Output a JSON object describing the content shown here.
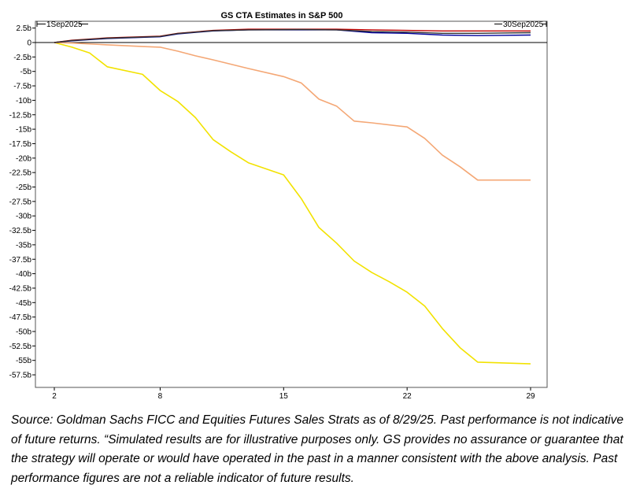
{
  "chart_data": {
    "type": "line",
    "title": "GS CTA Estimates in S&P 500",
    "start_label": "1Sep2025",
    "end_label": "30Sep2025",
    "xlim": [
      1,
      29
    ],
    "ylim": [
      -58.5,
      3
    ],
    "x_ticks": [
      2,
      8,
      15,
      22,
      29
    ],
    "y_ticks": [
      {
        "v": 2.5,
        "label": "2.5b"
      },
      {
        "v": 0,
        "label": "0"
      },
      {
        "v": -2.5,
        "label": "-2.5b"
      },
      {
        "v": -5,
        "label": "-5b"
      },
      {
        "v": -7.5,
        "label": "-7.5b"
      },
      {
        "v": -10,
        "label": "-10b"
      },
      {
        "v": -12.5,
        "label": "-12.5b"
      },
      {
        "v": -15,
        "label": "-15b"
      },
      {
        "v": -17.5,
        "label": "-17.5b"
      },
      {
        "v": -20,
        "label": "-20b"
      },
      {
        "v": -22.5,
        "label": "-22.5b"
      },
      {
        "v": -25,
        "label": "-25b"
      },
      {
        "v": -27.5,
        "label": "-27.5b"
      },
      {
        "v": -30,
        "label": "-30b"
      },
      {
        "v": -32.5,
        "label": "-32.5b"
      },
      {
        "v": -35,
        "label": "-35b"
      },
      {
        "v": -37.5,
        "label": "-37.5b"
      },
      {
        "v": -40,
        "label": "-40b"
      },
      {
        "v": -42.5,
        "label": "-42.5b"
      },
      {
        "v": -45,
        "label": "-45b"
      },
      {
        "v": -47.5,
        "label": "-47.5b"
      },
      {
        "v": -50,
        "label": "-50b"
      },
      {
        "v": -52.5,
        "label": "-52.5b"
      },
      {
        "v": -55,
        "label": "-55b"
      },
      {
        "v": -57.5,
        "label": "-57.5b"
      }
    ],
    "grid": false,
    "series": [
      {
        "color": "#f2e200",
        "values": [
          [
            2,
            0
          ],
          [
            3,
            -0.8
          ],
          [
            4,
            -1.8
          ],
          [
            5,
            -4.2
          ],
          [
            7,
            -5.5
          ],
          [
            8,
            -8.3
          ],
          [
            9,
            -10.2
          ],
          [
            10,
            -13
          ],
          [
            11,
            -16.8
          ],
          [
            12,
            -18.9
          ],
          [
            13,
            -20.8
          ],
          [
            15,
            -22.9
          ],
          [
            16,
            -27
          ],
          [
            17,
            -32
          ],
          [
            18,
            -34.7
          ],
          [
            19,
            -37.8
          ],
          [
            20,
            -39.8
          ],
          [
            21,
            -41.4
          ],
          [
            22,
            -43.2
          ],
          [
            23,
            -45.6
          ],
          [
            24,
            -49.5
          ],
          [
            25,
            -52.8
          ],
          [
            26,
            -55.3
          ],
          [
            29,
            -55.6
          ]
        ]
      },
      {
        "color": "#f4a775",
        "values": [
          [
            2,
            0
          ],
          [
            3,
            -0.1
          ],
          [
            5,
            -0.4
          ],
          [
            7,
            -0.7
          ],
          [
            8,
            -0.8
          ],
          [
            9,
            -1.5
          ],
          [
            10,
            -2.3
          ],
          [
            11,
            -3.0
          ],
          [
            13,
            -4.5
          ],
          [
            15,
            -5.9
          ],
          [
            16,
            -7.0
          ],
          [
            17,
            -9.8
          ],
          [
            18,
            -11.0
          ],
          [
            19,
            -13.6
          ],
          [
            20,
            -13.9
          ],
          [
            22,
            -14.6
          ],
          [
            23,
            -16.6
          ],
          [
            24,
            -19.5
          ],
          [
            25,
            -21.5
          ],
          [
            26,
            -23.8
          ],
          [
            29,
            -23.8
          ]
        ]
      },
      {
        "color": "#00009c",
        "values": [
          [
            2,
            0
          ],
          [
            3,
            0.3
          ],
          [
            5,
            0.7
          ],
          [
            8,
            1.0
          ],
          [
            9,
            1.5
          ],
          [
            11,
            2.0
          ],
          [
            13,
            2.2
          ],
          [
            16,
            2.2
          ],
          [
            18,
            2.2
          ],
          [
            20,
            1.7
          ],
          [
            22,
            1.6
          ],
          [
            24,
            1.3
          ],
          [
            26,
            1.2
          ],
          [
            29,
            1.3
          ]
        ]
      },
      {
        "color": "#c00000",
        "values": [
          [
            2,
            0
          ],
          [
            3,
            0.4
          ],
          [
            5,
            0.8
          ],
          [
            8,
            1.1
          ],
          [
            9,
            1.6
          ],
          [
            11,
            2.1
          ],
          [
            13,
            2.3
          ],
          [
            16,
            2.3
          ],
          [
            18,
            2.3
          ],
          [
            20,
            2.2
          ],
          [
            22,
            2.1
          ],
          [
            24,
            2.0
          ],
          [
            26,
            2.0
          ],
          [
            29,
            2.0
          ]
        ]
      },
      {
        "color": "#303030",
        "values": [
          [
            2,
            0
          ],
          [
            3,
            0.35
          ],
          [
            5,
            0.75
          ],
          [
            8,
            1.05
          ],
          [
            9,
            1.55
          ],
          [
            11,
            2.05
          ],
          [
            13,
            2.2
          ],
          [
            16,
            2.25
          ],
          [
            18,
            2.2
          ],
          [
            20,
            1.9
          ],
          [
            22,
            1.8
          ],
          [
            24,
            1.6
          ],
          [
            26,
            1.6
          ],
          [
            29,
            1.7
          ]
        ]
      }
    ]
  },
  "caption": "Source: Goldman Sachs FICC and Equities Futures Sales Strats as of 8/29/25. Past performance is not indicative of future returns. “Simulated results are for illustrative purposes only. GS provides no assurance or guarantee that the strategy will operate or would have operated in the past in a manner consistent with the above analysis. Past performance figures are not a reliable indicator of future results."
}
